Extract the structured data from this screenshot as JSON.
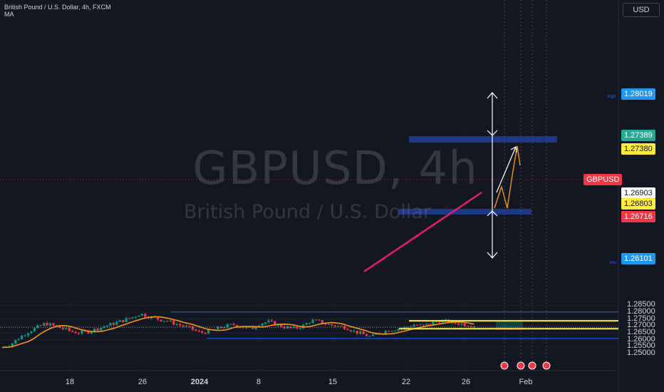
{
  "header": {
    "title": "British Pound / U.S. Dollar, 4h, FXCM",
    "indicator": "MA"
  },
  "currency_button": "USD",
  "watermark": {
    "symbol": "GBPUSD, 4h",
    "name": "British Pound / U.S. Dollar"
  },
  "colors": {
    "background": "#131722",
    "candle_up": "#089981",
    "candle_down": "#f23645",
    "ma_line": "#f7931a",
    "level_line": "#2962ff",
    "yellow_level": "#ffeb3b",
    "trendline": "#e91e63",
    "arrow": "#ffffff"
  },
  "price_labels": {
    "high_tag": "high",
    "low_tag": "low",
    "high": "1.28019",
    "low": "1.26101",
    "green": "1.27389",
    "yellow_top": "1.27380",
    "symbol": "GBPUSD",
    "current": "1.26903",
    "yellow_bottom": "1.26803",
    "red": "1.26716"
  },
  "chart_data": {
    "type": "candlestick",
    "symbol": "GBPUSD",
    "interval": "4h",
    "y_axis_ticks": [
      "1.28500",
      "1.28000",
      "1.27500",
      "1.27000",
      "1.26500",
      "1.26000",
      "1.25500",
      "1.25000"
    ],
    "x_axis_ticks": [
      "18",
      "26",
      "2024",
      "8",
      "15",
      "22",
      "26",
      "Feb"
    ],
    "ylim": [
      1.2487,
      1.2895
    ],
    "series_close_approx": [
      1.2545,
      1.257,
      1.262,
      1.266,
      1.269,
      1.272,
      1.27,
      1.268,
      1.266,
      1.265,
      1.266,
      1.268,
      1.27,
      1.272,
      1.274,
      1.276,
      1.279,
      1.277,
      1.275,
      1.274,
      1.272,
      1.27,
      1.268,
      1.265,
      1.266,
      1.268,
      1.27,
      1.271,
      1.269,
      1.268,
      1.272,
      1.273,
      1.271,
      1.269,
      1.268,
      1.27,
      1.274,
      1.273,
      1.271,
      1.27,
      1.269,
      1.266,
      1.264,
      1.262,
      1.265,
      1.267,
      1.268,
      1.269,
      1.271,
      1.27,
      1.272,
      1.274,
      1.273,
      1.272,
      1.271,
      1.2705
    ],
    "levels": {
      "high": 1.28019,
      "low": 1.26101,
      "yellow_top": 1.2738,
      "yellow_bottom": 1.26803,
      "current": 1.26903,
      "long_target": 1.27389,
      "long_stop": 1.26716
    }
  }
}
